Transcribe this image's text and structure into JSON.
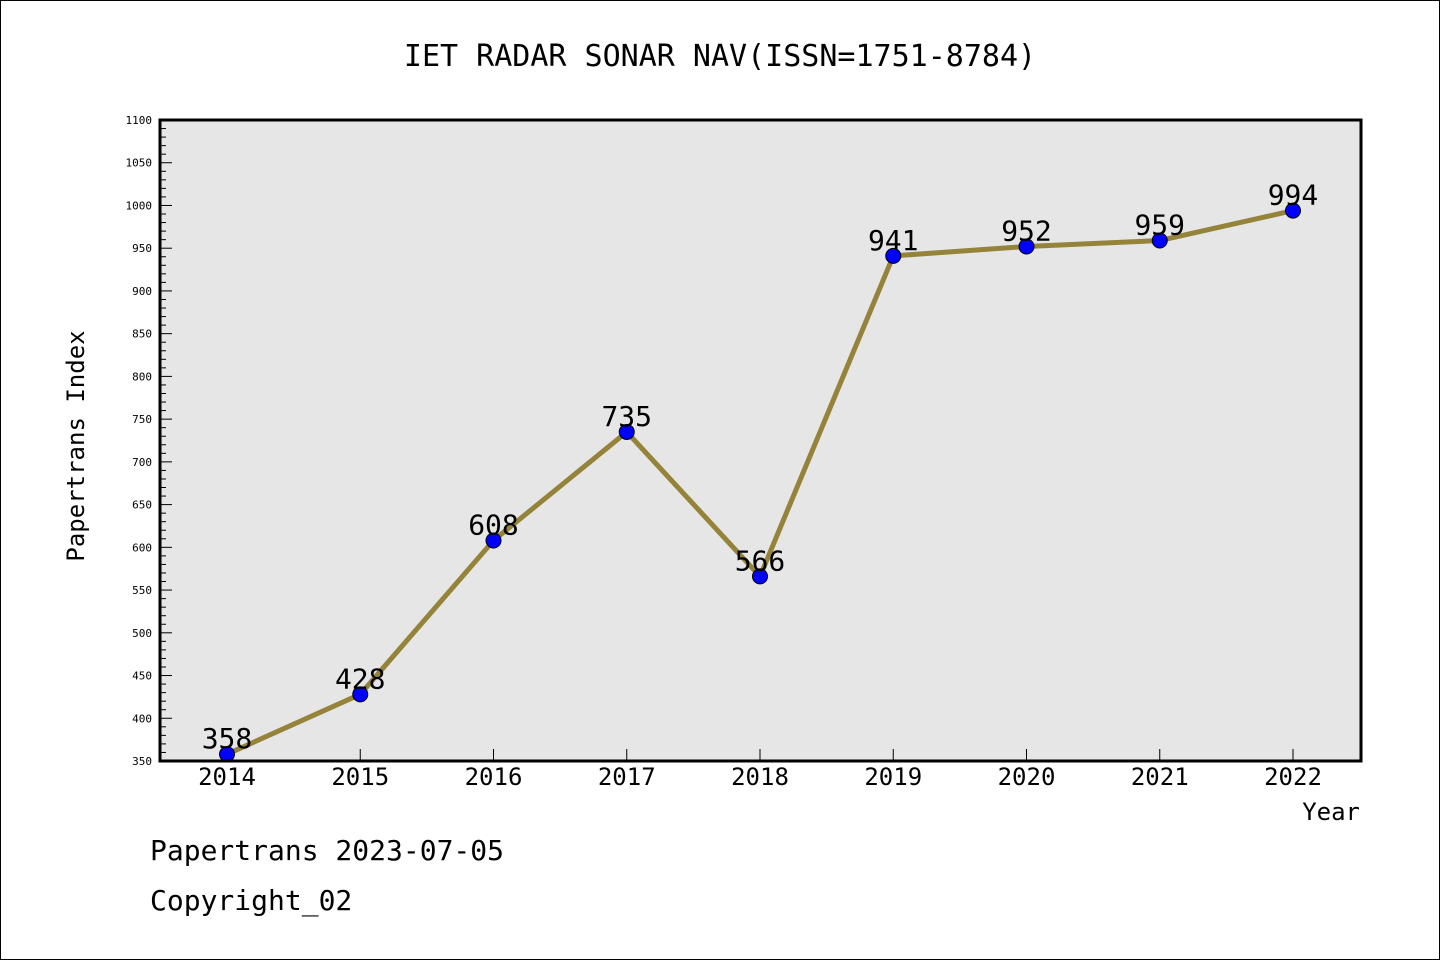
{
  "chart_data": {
    "type": "line",
    "title": "IET RADAR SONAR NAV(ISSN=1751-8784)",
    "xlabel": "Year",
    "ylabel": "Papertrans Index",
    "ylim": [
      350,
      1100
    ],
    "yticks": [
      350,
      400,
      450,
      500,
      550,
      600,
      650,
      700,
      750,
      800,
      850,
      900,
      950,
      1000,
      1050,
      1100
    ],
    "categories": [
      "2014",
      "2015",
      "2016",
      "2017",
      "2018",
      "2019",
      "2020",
      "2021",
      "2022"
    ],
    "series": [
      {
        "values": [
          358,
          428,
          608,
          735,
          566,
          941,
          952,
          959,
          994
        ]
      }
    ],
    "data_labels": [
      "358",
      "428",
      "608",
      "735",
      "566",
      "941",
      "952",
      "959",
      "994"
    ],
    "grid": false,
    "colors": {
      "line": "#958339",
      "marker": "#0000ff",
      "plot_bg": "#e6e6e6"
    }
  },
  "footer": {
    "line1": "Papertrans 2023-07-05",
    "line2": "Copyright_02"
  }
}
